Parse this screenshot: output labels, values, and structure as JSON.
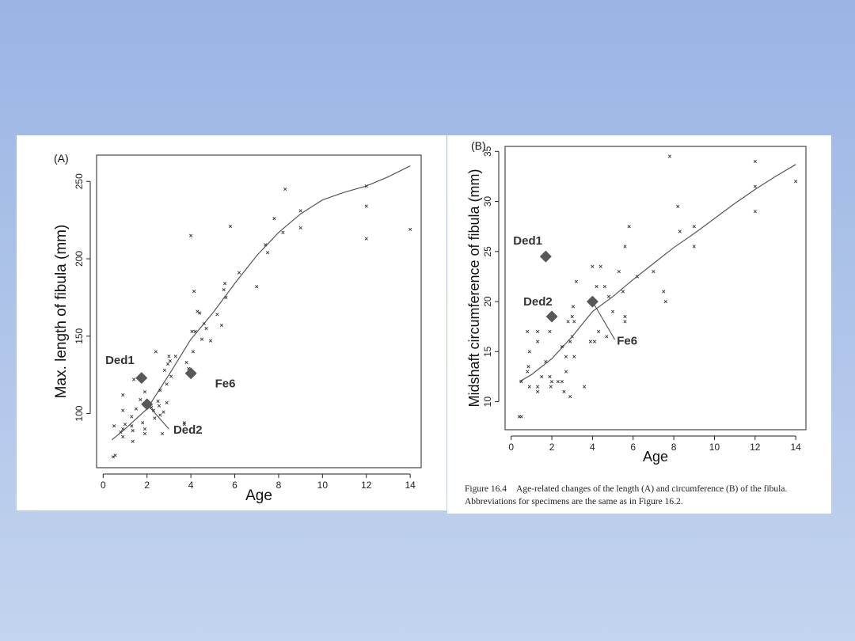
{
  "chart_data": [
    {
      "type": "scatter",
      "panel_label": "(A)",
      "xlabel": "Age",
      "ylabel": "Max. length of fibula (mm)",
      "xlim": [
        -0.3,
        14.5
      ],
      "ylim": [
        65,
        267
      ],
      "xticks": [
        0,
        2,
        4,
        6,
        8,
        10,
        12,
        14
      ],
      "yticks": [
        100,
        150,
        200,
        250
      ],
      "grid": false,
      "legend": "none",
      "points": [
        {
          "x": 0.45,
          "y": 72
        },
        {
          "x": 0.55,
          "y": 73
        },
        {
          "x": 0.5,
          "y": 92
        },
        {
          "x": 0.8,
          "y": 88
        },
        {
          "x": 0.9,
          "y": 90
        },
        {
          "x": 0.9,
          "y": 85
        },
        {
          "x": 0.9,
          "y": 102
        },
        {
          "x": 0.9,
          "y": 112
        },
        {
          "x": 1.0,
          "y": 93
        },
        {
          "x": 1.3,
          "y": 98
        },
        {
          "x": 1.3,
          "y": 92
        },
        {
          "x": 1.35,
          "y": 89
        },
        {
          "x": 1.35,
          "y": 82
        },
        {
          "x": 1.4,
          "y": 122
        },
        {
          "x": 1.5,
          "y": 103
        },
        {
          "x": 1.7,
          "y": 109
        },
        {
          "x": 1.8,
          "y": 94
        },
        {
          "x": 1.9,
          "y": 90
        },
        {
          "x": 1.9,
          "y": 114
        },
        {
          "x": 1.9,
          "y": 87
        },
        {
          "x": 2.2,
          "y": 104
        },
        {
          "x": 2.3,
          "y": 102
        },
        {
          "x": 2.35,
          "y": 97
        },
        {
          "x": 2.4,
          "y": 140
        },
        {
          "x": 2.5,
          "y": 108
        },
        {
          "x": 2.55,
          "y": 105
        },
        {
          "x": 2.6,
          "y": 115
        },
        {
          "x": 2.6,
          "y": 99
        },
        {
          "x": 2.7,
          "y": 87
        },
        {
          "x": 2.75,
          "y": 101
        },
        {
          "x": 2.8,
          "y": 128
        },
        {
          "x": 2.9,
          "y": 107
        },
        {
          "x": 2.9,
          "y": 119
        },
        {
          "x": 2.95,
          "y": 132
        },
        {
          "x": 3.0,
          "y": 137
        },
        {
          "x": 3.05,
          "y": 134
        },
        {
          "x": 3.1,
          "y": 124
        },
        {
          "x": 3.3,
          "y": 137
        },
        {
          "x": 3.7,
          "y": 94
        },
        {
          "x": 3.7,
          "y": 93
        },
        {
          "x": 3.8,
          "y": 133
        },
        {
          "x": 3.9,
          "y": 129
        },
        {
          "x": 4.0,
          "y": 215
        },
        {
          "x": 4.05,
          "y": 153
        },
        {
          "x": 4.1,
          "y": 140
        },
        {
          "x": 4.15,
          "y": 179
        },
        {
          "x": 4.2,
          "y": 153
        },
        {
          "x": 4.3,
          "y": 166
        },
        {
          "x": 4.4,
          "y": 165
        },
        {
          "x": 4.5,
          "y": 148
        },
        {
          "x": 4.6,
          "y": 158
        },
        {
          "x": 4.7,
          "y": 155
        },
        {
          "x": 4.9,
          "y": 147
        },
        {
          "x": 5.2,
          "y": 164
        },
        {
          "x": 5.4,
          "y": 157
        },
        {
          "x": 5.5,
          "y": 180
        },
        {
          "x": 5.55,
          "y": 184
        },
        {
          "x": 5.6,
          "y": 175
        },
        {
          "x": 5.8,
          "y": 221
        },
        {
          "x": 6.2,
          "y": 191
        },
        {
          "x": 7.0,
          "y": 182
        },
        {
          "x": 7.4,
          "y": 209
        },
        {
          "x": 7.5,
          "y": 204
        },
        {
          "x": 7.8,
          "y": 226
        },
        {
          "x": 8.2,
          "y": 217
        },
        {
          "x": 8.3,
          "y": 245
        },
        {
          "x": 9.0,
          "y": 231
        },
        {
          "x": 9.0,
          "y": 220
        },
        {
          "x": 12.0,
          "y": 247
        },
        {
          "x": 12.0,
          "y": 234
        },
        {
          "x": 12.0,
          "y": 213
        },
        {
          "x": 14.0,
          "y": 219
        }
      ],
      "fit_line": [
        {
          "x": 0.4,
          "y": 83
        },
        {
          "x": 1,
          "y": 90
        },
        {
          "x": 2,
          "y": 103
        },
        {
          "x": 3,
          "y": 125
        },
        {
          "x": 4,
          "y": 148
        },
        {
          "x": 5,
          "y": 165
        },
        {
          "x": 6,
          "y": 184
        },
        {
          "x": 7,
          "y": 202
        },
        {
          "x": 8,
          "y": 217
        },
        {
          "x": 9,
          "y": 229
        },
        {
          "x": 10,
          "y": 238
        },
        {
          "x": 11,
          "y": 243
        },
        {
          "x": 12,
          "y": 247
        },
        {
          "x": 13,
          "y": 253
        },
        {
          "x": 14,
          "y": 260
        }
      ],
      "specimens": [
        {
          "name": "Ded1",
          "x": 1.75,
          "y": 123
        },
        {
          "name": "Ded2",
          "x": 2.0,
          "y": 106
        },
        {
          "name": "Fe6",
          "x": 4.0,
          "y": 126
        }
      ],
      "labels": [
        {
          "text": "Ded1",
          "x": 0.1,
          "y": 132
        },
        {
          "text": "Ded2",
          "x": 3.2,
          "y": 87
        },
        {
          "text": "Fe6",
          "x": 5.1,
          "y": 117
        }
      ],
      "leader": {
        "from": {
          "x": 2.0,
          "y": 106
        },
        "to": {
          "x": 3.0,
          "y": 90
        }
      }
    },
    {
      "type": "scatter",
      "panel_label": "(B)",
      "xlabel": "Age",
      "ylabel": "Midshaft circumference of fibula (mm)",
      "xlim": [
        -0.3,
        14.5
      ],
      "ylim": [
        7.2,
        35.5
      ],
      "xticks": [
        0,
        2,
        4,
        6,
        8,
        10,
        12,
        14
      ],
      "yticks": [
        10,
        15,
        20,
        25,
        30,
        35
      ],
      "grid": false,
      "legend": "none",
      "points": [
        {
          "x": 0.4,
          "y": 8.5
        },
        {
          "x": 0.5,
          "y": 8.5
        },
        {
          "x": 0.5,
          "y": 12
        },
        {
          "x": 0.8,
          "y": 17
        },
        {
          "x": 0.8,
          "y": 13
        },
        {
          "x": 0.85,
          "y": 13.5
        },
        {
          "x": 0.9,
          "y": 11.5
        },
        {
          "x": 0.9,
          "y": 15
        },
        {
          "x": 1.3,
          "y": 17
        },
        {
          "x": 1.3,
          "y": 16
        },
        {
          "x": 1.3,
          "y": 11
        },
        {
          "x": 1.3,
          "y": 11.5
        },
        {
          "x": 1.5,
          "y": 12.5
        },
        {
          "x": 1.7,
          "y": 14
        },
        {
          "x": 1.9,
          "y": 17
        },
        {
          "x": 1.9,
          "y": 12.5
        },
        {
          "x": 1.95,
          "y": 11.5
        },
        {
          "x": 2.0,
          "y": 12
        },
        {
          "x": 2.3,
          "y": 12
        },
        {
          "x": 2.5,
          "y": 12
        },
        {
          "x": 2.5,
          "y": 15.5
        },
        {
          "x": 2.6,
          "y": 11
        },
        {
          "x": 2.7,
          "y": 14.5
        },
        {
          "x": 2.7,
          "y": 13
        },
        {
          "x": 2.8,
          "y": 18
        },
        {
          "x": 2.9,
          "y": 10.5
        },
        {
          "x": 2.9,
          "y": 16
        },
        {
          "x": 3.0,
          "y": 18.5
        },
        {
          "x": 3.0,
          "y": 16.5
        },
        {
          "x": 3.05,
          "y": 19.5
        },
        {
          "x": 3.1,
          "y": 18
        },
        {
          "x": 3.1,
          "y": 14.5
        },
        {
          "x": 3.2,
          "y": 22
        },
        {
          "x": 3.6,
          "y": 11.5
        },
        {
          "x": 3.9,
          "y": 16
        },
        {
          "x": 4.0,
          "y": 23.5
        },
        {
          "x": 4.1,
          "y": 16
        },
        {
          "x": 4.2,
          "y": 21.5
        },
        {
          "x": 4.3,
          "y": 17
        },
        {
          "x": 4.4,
          "y": 23.5
        },
        {
          "x": 4.6,
          "y": 21.5
        },
        {
          "x": 4.7,
          "y": 16.5
        },
        {
          "x": 4.8,
          "y": 20.5
        },
        {
          "x": 5.0,
          "y": 19
        },
        {
          "x": 5.3,
          "y": 23
        },
        {
          "x": 5.5,
          "y": 21
        },
        {
          "x": 5.6,
          "y": 18.5
        },
        {
          "x": 5.6,
          "y": 18
        },
        {
          "x": 5.6,
          "y": 25.5
        },
        {
          "x": 5.8,
          "y": 27.5
        },
        {
          "x": 6.2,
          "y": 22.5
        },
        {
          "x": 7.0,
          "y": 23
        },
        {
          "x": 7.5,
          "y": 21
        },
        {
          "x": 7.6,
          "y": 20
        },
        {
          "x": 7.8,
          "y": 34.5
        },
        {
          "x": 8.2,
          "y": 29.5
        },
        {
          "x": 8.3,
          "y": 27
        },
        {
          "x": 9.0,
          "y": 27.5
        },
        {
          "x": 9.0,
          "y": 25.5
        },
        {
          "x": 12.0,
          "y": 34
        },
        {
          "x": 12.0,
          "y": 31.5
        },
        {
          "x": 12.0,
          "y": 29
        },
        {
          "x": 14.0,
          "y": 32
        }
      ],
      "fit_line": [
        {
          "x": 0.4,
          "y": 12
        },
        {
          "x": 1,
          "y": 12.7
        },
        {
          "x": 2,
          "y": 14.3
        },
        {
          "x": 3,
          "y": 16.5
        },
        {
          "x": 4,
          "y": 19
        },
        {
          "x": 5,
          "y": 20.5
        },
        {
          "x": 6,
          "y": 22.2
        },
        {
          "x": 7,
          "y": 23.8
        },
        {
          "x": 8,
          "y": 25.4
        },
        {
          "x": 9,
          "y": 26.8
        },
        {
          "x": 10,
          "y": 28.3
        },
        {
          "x": 11,
          "y": 29.8
        },
        {
          "x": 12,
          "y": 31.2
        },
        {
          "x": 13,
          "y": 32.5
        },
        {
          "x": 14,
          "y": 33.7
        }
      ],
      "specimens": [
        {
          "name": "Ded1",
          "x": 1.7,
          "y": 24.5
        },
        {
          "name": "Ded2",
          "x": 2.0,
          "y": 18.5
        },
        {
          "name": "Fe6",
          "x": 4.0,
          "y": 20
        }
      ],
      "labels": [
        {
          "text": "Ded1",
          "x": 0.1,
          "y": 25.7
        },
        {
          "text": "Ded2",
          "x": 0.6,
          "y": 19.6
        },
        {
          "text": "Fe6",
          "x": 5.2,
          "y": 15.7
        }
      ],
      "leader": {
        "from": {
          "x": 4.0,
          "y": 20
        },
        "to": {
          "x": 5.1,
          "y": 16.2
        }
      }
    }
  ],
  "caption": {
    "label": "Figure 16.4",
    "text": "Age-related changes of the length (A) and circumference (B) of the fibula. Abbreviations for specimens are the same as in Figure 16.2."
  }
}
